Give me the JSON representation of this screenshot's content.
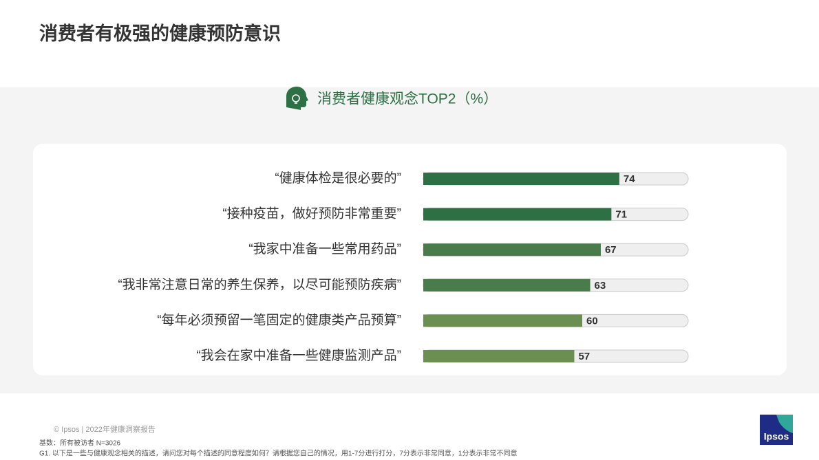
{
  "title": "消费者有极强的健康预防意识",
  "chart_data": {
    "type": "bar",
    "orientation": "horizontal",
    "title": "消费者健康观念TOP2（%）",
    "categories": [
      "“健康体检是很必要的”",
      "“接种疫苗，做好预防非常重要”",
      "“我家中准备一些常用药品”",
      "“我非常注意日常的养生保养，以尽可能预防疾病”",
      "“每年必须预留一笔固定的健康类产品预算”",
      "“我会在家中准备一些健康监测产品”"
    ],
    "values": [
      74,
      71,
      67,
      63,
      60,
      57
    ],
    "colors": [
      "#2d7044",
      "#2d7044",
      "#4a7b4a",
      "#4a7b4a",
      "#6a8f50",
      "#6a8f50"
    ],
    "xlim": [
      0,
      100
    ]
  },
  "footer": {
    "copyright": "© Ipsos | 2022年健康洞察报告",
    "base": "基数：所有被访者  N=3026",
    "question": "G1. 以下是一些与健康观念相关的描述，请问您对每个描述的同意程度如何？请根据您自己的情况，用1-7分进行打分，7分表示非常同意，1分表示非常不同意",
    "logo": "Ipsos"
  }
}
